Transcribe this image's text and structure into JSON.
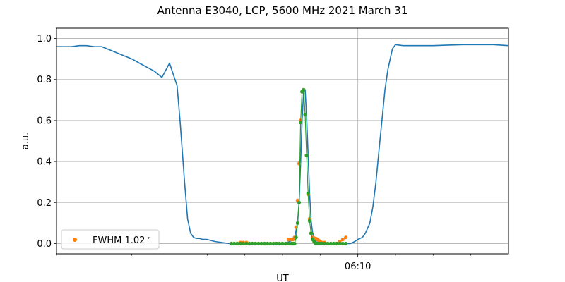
{
  "chart_data": {
    "type": "line",
    "title": "Antenna E3040, LCP, 5600 MHz 2021 March 31",
    "xlabel": "UT",
    "ylabel": "a.u.",
    "xlim": [
      0,
      30
    ],
    "ylim": [
      -0.05,
      1.05
    ],
    "yticks": [
      0.0,
      0.2,
      0.4,
      0.6,
      0.8,
      1.0
    ],
    "ytick_labels": [
      "0.0",
      "0.2",
      "0.4",
      "0.6",
      "0.8",
      "1.0"
    ],
    "xticks_major": [
      {
        "x": 20,
        "label": "06:10"
      }
    ],
    "xticks_minor": [
      0,
      5,
      10,
      12.5,
      15,
      17.5,
      22.5,
      25,
      27.5
    ],
    "grid": true,
    "legend": {
      "position": "lower-left",
      "entries": [
        {
          "label": "FWHM 1.02$^\\circ$",
          "text": "FWHM 1.02",
          "superscript": "∘",
          "color": "#ff7f0e",
          "marker": "dot"
        }
      ]
    },
    "colors": {
      "signal": "#1f77b4",
      "fwhm": "#ff7f0e",
      "fit": "#2ca02c"
    },
    "series": [
      {
        "color": "#1f77b4",
        "style": "line",
        "x": [
          0,
          0.5,
          1,
          1.5,
          2,
          2.5,
          3,
          3.5,
          4,
          4.5,
          5,
          5.5,
          6,
          6.5,
          7,
          7.5,
          8,
          8.2,
          8.5,
          8.7,
          8.9,
          9.1,
          9.3,
          9.5,
          9.7,
          10,
          10.5,
          11,
          11.5,
          12,
          13,
          14,
          15,
          15.5,
          15.8,
          16,
          16.1,
          16.2,
          16.3,
          16.4,
          16.5,
          16.6,
          16.7,
          16.8,
          16.9,
          17,
          17.2,
          17.5,
          18,
          18.5,
          19,
          19.5,
          19.8,
          20,
          20.3,
          20.5,
          20.8,
          21,
          21.2,
          21.4,
          21.6,
          21.8,
          22,
          22.3,
          22.5,
          23,
          24,
          25,
          26,
          27,
          28,
          29,
          30
        ],
        "y": [
          0.96,
          0.96,
          0.96,
          0.965,
          0.965,
          0.96,
          0.96,
          0.945,
          0.93,
          0.915,
          0.9,
          0.88,
          0.86,
          0.84,
          0.81,
          0.88,
          0.77,
          0.6,
          0.3,
          0.12,
          0.05,
          0.03,
          0.025,
          0.025,
          0.02,
          0.02,
          0.01,
          0.005,
          0.0,
          0.0,
          0.0,
          0.0,
          0.0,
          0.01,
          0.03,
          0.1,
          0.2,
          0.39,
          0.6,
          0.74,
          0.75,
          0.62,
          0.43,
          0.24,
          0.11,
          0.05,
          0.015,
          0.005,
          0.0,
          0.0,
          0.0,
          0.0,
          0.01,
          0.02,
          0.03,
          0.05,
          0.1,
          0.18,
          0.3,
          0.45,
          0.6,
          0.75,
          0.85,
          0.95,
          0.97,
          0.965,
          0.965,
          0.965,
          0.968,
          0.97,
          0.97,
          0.97,
          0.965
        ]
      },
      {
        "name": "FWHM 1.02$^\\circ$",
        "color": "#ff7f0e",
        "style": "dots",
        "x": [
          11.6,
          11.8,
          12.0,
          12.2,
          12.4,
          12.6,
          12.8,
          13.0,
          13.2,
          13.4,
          13.6,
          13.8,
          14.0,
          14.2,
          14.4,
          14.6,
          14.8,
          15.0,
          15.2,
          15.4,
          15.6,
          15.7,
          15.8,
          15.9,
          16.0,
          16.1,
          16.2,
          16.3,
          16.4,
          16.5,
          16.6,
          16.7,
          16.8,
          16.9,
          17.0,
          17.1,
          17.2,
          17.3,
          17.4,
          17.5,
          17.6,
          17.8,
          18.0,
          18.2,
          18.4,
          18.6,
          18.8,
          19.0,
          19.2
        ],
        "y": [
          0.0,
          0.0,
          0.0,
          0.005,
          0.005,
          0.005,
          0.0,
          0.0,
          0.0,
          0.0,
          0.0,
          0.0,
          0.0,
          0.0,
          0.0,
          0.0,
          0.0,
          0.0,
          0.0,
          0.02,
          0.02,
          0.02,
          0.03,
          0.08,
          0.21,
          0.39,
          0.6,
          0.74,
          0.75,
          0.63,
          0.43,
          0.24,
          0.12,
          0.05,
          0.03,
          0.025,
          0.025,
          0.02,
          0.015,
          0.01,
          0.005,
          0.005,
          0.0,
          0.0,
          0.0,
          0.0,
          0.01,
          0.02,
          0.03
        ]
      },
      {
        "color": "#2ca02c",
        "style": "dots-line",
        "x": [
          11.6,
          11.8,
          12.0,
          12.2,
          12.4,
          12.6,
          12.8,
          13.0,
          13.2,
          13.4,
          13.6,
          13.8,
          14.0,
          14.2,
          14.4,
          14.6,
          14.8,
          15.0,
          15.2,
          15.4,
          15.6,
          15.7,
          15.8,
          15.9,
          16.0,
          16.1,
          16.2,
          16.3,
          16.4,
          16.5,
          16.6,
          16.7,
          16.8,
          16.9,
          17.0,
          17.1,
          17.2,
          17.3,
          17.4,
          17.5,
          17.6,
          17.8,
          18.0,
          18.2,
          18.4,
          18.6,
          18.8,
          19.0,
          19.2
        ],
        "y": [
          0.0,
          0.0,
          0.0,
          0.0,
          0.0,
          0.0,
          0.0,
          0.0,
          0.0,
          0.0,
          0.0,
          0.0,
          0.0,
          0.0,
          0.0,
          0.0,
          0.0,
          0.0,
          0.0,
          0.0,
          0.0,
          0.0,
          0.0,
          0.03,
          0.1,
          0.2,
          0.59,
          0.74,
          0.75,
          0.63,
          0.43,
          0.245,
          0.11,
          0.05,
          0.02,
          0.01,
          0.0,
          0.0,
          0.0,
          0.0,
          0.0,
          0.0,
          0.0,
          0.0,
          0.0,
          0.0,
          0.0,
          0.0,
          0.0
        ]
      }
    ]
  }
}
